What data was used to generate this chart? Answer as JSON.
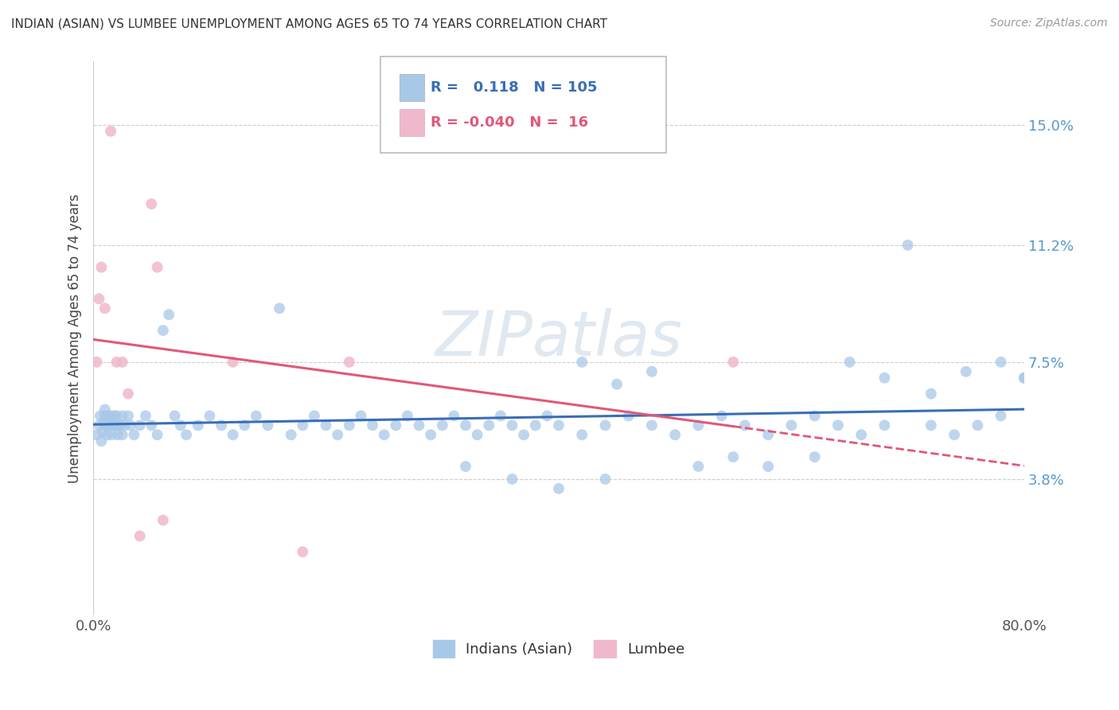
{
  "title": "INDIAN (ASIAN) VS LUMBEE UNEMPLOYMENT AMONG AGES 65 TO 74 YEARS CORRELATION CHART",
  "source": "Source: ZipAtlas.com",
  "ylabel": "Unemployment Among Ages 65 to 74 years",
  "xlim": [
    0,
    80
  ],
  "ylim": [
    -0.5,
    17
  ],
  "yticks": [
    0,
    3.8,
    7.5,
    11.2,
    15.0
  ],
  "ytick_labels": [
    "",
    "3.8%",
    "7.5%",
    "11.2%",
    "15.0%"
  ],
  "xtick_labels": [
    "0.0%",
    "80.0%"
  ],
  "xticks": [
    0,
    80
  ],
  "indian_color": "#a8c8e8",
  "lumbee_color": "#f0b8cc",
  "indian_line_color": "#3a6db5",
  "lumbee_line_color": "#e05878",
  "background_color": "#ffffff",
  "grid_color": "#cccccc",
  "watermark_color": "#e0e8f0",
  "indian_x": [
    0.3,
    0.5,
    0.6,
    0.7,
    0.8,
    0.9,
    1.0,
    1.0,
    1.1,
    1.2,
    1.3,
    1.4,
    1.5,
    1.5,
    1.6,
    1.7,
    1.8,
    2.0,
    2.0,
    2.1,
    2.2,
    2.3,
    2.5,
    2.5,
    2.7,
    3.0,
    3.2,
    3.5,
    4.0,
    4.5,
    5.0,
    5.5,
    6.0,
    6.5,
    7.0,
    7.5,
    8.0,
    9.0,
    10.0,
    11.0,
    12.0,
    13.0,
    14.0,
    15.0,
    16.0,
    17.0,
    18.0,
    19.0,
    20.0,
    21.0,
    22.0,
    23.0,
    24.0,
    25.0,
    26.0,
    27.0,
    28.0,
    29.0,
    30.0,
    31.0,
    32.0,
    33.0,
    34.0,
    35.0,
    36.0,
    37.0,
    38.0,
    39.0,
    40.0,
    42.0,
    44.0,
    46.0,
    48.0,
    50.0,
    52.0,
    54.0,
    56.0,
    58.0,
    60.0,
    62.0,
    64.0,
    66.0,
    68.0,
    70.0,
    72.0,
    74.0,
    76.0,
    78.0,
    80.0,
    42.0,
    45.0,
    48.0,
    52.0,
    55.0,
    58.0,
    62.0,
    65.0,
    68.0,
    72.0,
    75.0,
    78.0,
    80.0,
    32.0,
    36.0,
    40.0,
    44.0
  ],
  "indian_y": [
    5.2,
    5.5,
    5.8,
    5.0,
    5.3,
    5.6,
    6.0,
    5.8,
    5.5,
    5.2,
    5.8,
    5.5,
    5.5,
    5.8,
    5.2,
    5.5,
    5.8,
    5.5,
    5.8,
    5.2,
    5.5,
    5.5,
    5.8,
    5.2,
    5.5,
    5.8,
    5.5,
    5.2,
    5.5,
    5.8,
    5.5,
    5.2,
    8.5,
    9.0,
    5.8,
    5.5,
    5.2,
    5.5,
    5.8,
    5.5,
    5.2,
    5.5,
    5.8,
    5.5,
    9.2,
    5.2,
    5.5,
    5.8,
    5.5,
    5.2,
    5.5,
    5.8,
    5.5,
    5.2,
    5.5,
    5.8,
    5.5,
    5.2,
    5.5,
    5.8,
    5.5,
    5.2,
    5.5,
    5.8,
    5.5,
    5.2,
    5.5,
    5.8,
    5.5,
    5.2,
    5.5,
    5.8,
    5.5,
    5.2,
    5.5,
    5.8,
    5.5,
    5.2,
    5.5,
    5.8,
    5.5,
    5.2,
    5.5,
    11.2,
    5.5,
    5.2,
    5.5,
    5.8,
    7.0,
    7.5,
    6.8,
    7.2,
    4.2,
    4.5,
    4.2,
    4.5,
    7.5,
    7.0,
    6.5,
    7.2,
    7.5,
    7.0,
    4.2,
    3.8,
    3.5,
    3.8
  ],
  "lumbee_x": [
    0.3,
    0.5,
    0.7,
    1.0,
    1.5,
    2.0,
    2.5,
    3.0,
    4.0,
    5.0,
    5.5,
    6.0,
    12.0,
    18.0,
    22.0,
    55.0
  ],
  "lumbee_y": [
    7.5,
    9.5,
    10.5,
    9.2,
    14.8,
    7.5,
    7.5,
    6.5,
    2.0,
    12.5,
    10.5,
    2.5,
    7.5,
    1.5,
    7.5,
    7.5
  ]
}
